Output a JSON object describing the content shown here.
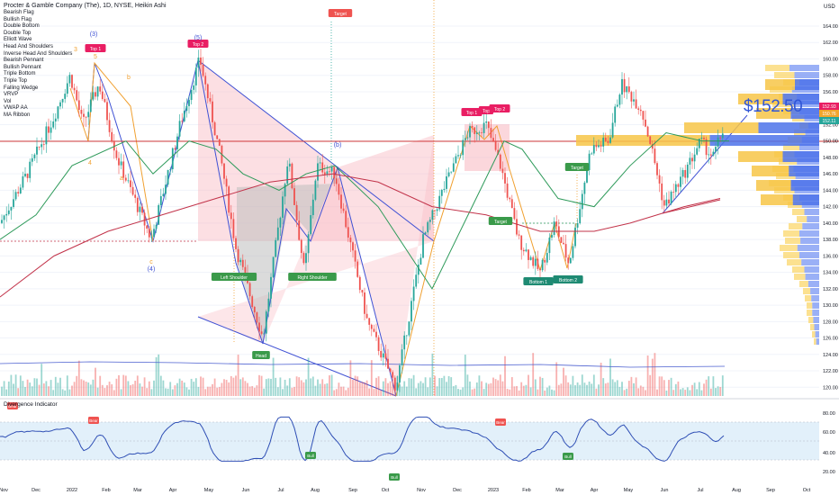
{
  "header": {
    "title": "Procter & Gamble Company (The), 1D, NYSE, Heikin Ashi",
    "currency": "USD",
    "price_callout": "$152.50"
  },
  "legend_items": [
    "Bearish Flag",
    "Bullish Flag",
    "Double Bottom",
    "Double Top",
    "Elliott Wave",
    "Head And Shoulders",
    "Inverse Head And Shoulders",
    "Bearish Pennant",
    "Bullish Pennant",
    "Triple Bottom",
    "Triple Top",
    "Falling Wedge",
    "VRVP",
    "Vol",
    "VWAP AA",
    "MA Ribbon"
  ],
  "indicator": {
    "title": "Divergence Indicator",
    "y_ticks": [
      "80.00",
      "60.00",
      "40.00",
      "20.00"
    ]
  },
  "price_tags": [
    "152.93",
    "150.76",
    "152.11"
  ],
  "colors": {
    "bull": "#26a69a",
    "bear": "#ef5350",
    "pattern_blue": "#3f51d4",
    "pattern_orange": "#f0a030",
    "ma_green": "#2e9a5a",
    "ma_red": "#c2334a",
    "divergence": "#2f4fb5",
    "vrvp_yellow": "#fbd76b",
    "vrvp_blue": "#6f8ff2"
  },
  "chart_data": {
    "type": "candlestick",
    "title": "Procter & Gamble Company (The), 1D, NYSE, Heikin Ashi",
    "x_ticks": [
      "Nov",
      "Dec",
      "2022",
      "Feb",
      "Mar",
      "Apr",
      "May",
      "Jun",
      "Jul",
      "Aug",
      "Sep",
      "Oct",
      "Nov",
      "Dec",
      "2023",
      "Feb",
      "Mar",
      "Apr",
      "May",
      "Jun",
      "Jul",
      "Aug",
      "Sep",
      "Oct"
    ],
    "y_ticks": [
      164,
      162,
      160,
      158,
      156,
      154,
      152,
      150,
      148,
      146,
      144,
      142,
      140,
      138,
      136,
      134,
      132,
      130,
      128,
      126,
      124,
      122,
      120
    ],
    "ylim": [
      120,
      165
    ],
    "price_path": [
      [
        0,
        140
      ],
      [
        30,
        146
      ],
      [
        60,
        153
      ],
      [
        78,
        158
      ],
      [
        92,
        152
      ],
      [
        110,
        157
      ],
      [
        130,
        148
      ],
      [
        168,
        138
      ],
      [
        200,
        152
      ],
      [
        222,
        160
      ],
      [
        245,
        148
      ],
      [
        262,
        137
      ],
      [
        292,
        126
      ],
      [
        320,
        148
      ],
      [
        338,
        134
      ],
      [
        352,
        147
      ],
      [
        372,
        146
      ],
      [
        388,
        138
      ],
      [
        408,
        128
      ],
      [
        440,
        120
      ],
      [
        470,
        138
      ],
      [
        492,
        144
      ],
      [
        520,
        151
      ],
      [
        540,
        152
      ],
      [
        556,
        147
      ],
      [
        576,
        138
      ],
      [
        600,
        134
      ],
      [
        616,
        140
      ],
      [
        632,
        135
      ],
      [
        656,
        149
      ],
      [
        676,
        150
      ],
      [
        690,
        157
      ],
      [
        712,
        154
      ],
      [
        722,
        150
      ],
      [
        738,
        142
      ],
      [
        760,
        146
      ],
      [
        778,
        150
      ],
      [
        792,
        148
      ],
      [
        805,
        152
      ]
    ],
    "series": [
      {
        "name": "MA Ribbon",
        "values": [
          [
            0,
            138
          ],
          [
            40,
            141
          ],
          [
            80,
            147
          ],
          [
            140,
            150
          ],
          [
            170,
            146
          ],
          [
            210,
            150
          ],
          [
            240,
            149
          ],
          [
            270,
            146
          ],
          [
            310,
            144
          ],
          [
            340,
            146
          ],
          [
            372,
            147
          ],
          [
            420,
            142
          ],
          [
            480,
            132
          ],
          [
            520,
            141
          ],
          [
            560,
            150
          ],
          [
            580,
            149
          ],
          [
            620,
            143
          ],
          [
            660,
            142
          ],
          [
            700,
            147
          ],
          [
            740,
            151
          ],
          [
            780,
            150
          ],
          [
            810,
            150
          ]
        ]
      },
      {
        "name": "MA Ribbon",
        "values": [
          [
            0,
            131
          ],
          [
            60,
            136
          ],
          [
            120,
            139
          ],
          [
            180,
            141
          ],
          [
            240,
            143
          ],
          [
            300,
            145
          ],
          [
            370,
            146
          ],
          [
            420,
            145
          ],
          [
            480,
            142
          ],
          [
            540,
            141
          ],
          [
            600,
            139
          ],
          [
            660,
            139
          ],
          [
            700,
            140
          ],
          [
            760,
            142
          ],
          [
            800,
            143
          ]
        ]
      }
    ],
    "pattern_labels": [
      "Top 1",
      "Top 2",
      "(3)",
      "(5)",
      "3",
      "5",
      "a",
      "b",
      "c",
      "4",
      "(4)",
      "(b)",
      "Target",
      "Left Shoulder",
      "Right Shoulder",
      "Head",
      "Target",
      "Top 1",
      "Top",
      "Top 2",
      "Target",
      "Bottom 1",
      "Bottom 2",
      "Target"
    ],
    "indicator_labels": [
      "Bear",
      "Bear",
      "Bull",
      "Bull",
      "Bear",
      "Bull"
    ]
  }
}
